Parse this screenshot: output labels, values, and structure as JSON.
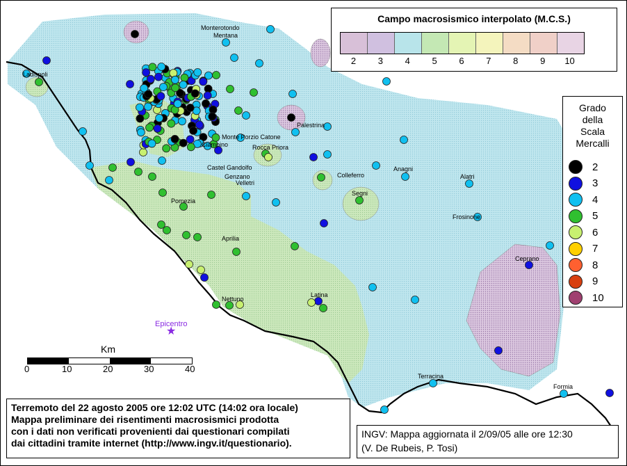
{
  "legend_top": {
    "title": "Campo macrosismico interpolato (M.C.S.)",
    "cells": [
      {
        "label": "2",
        "color": "#d8c0d8"
      },
      {
        "label": "3",
        "color": "#d0c0e0"
      },
      {
        "label": "4",
        "color": "#b8e4ea"
      },
      {
        "label": "5",
        "color": "#c4e8b4"
      },
      {
        "label": "6",
        "color": "#e4f4b4"
      },
      {
        "label": "7",
        "color": "#f4f4bc"
      },
      {
        "label": "8",
        "color": "#f4dcc4"
      },
      {
        "label": "9",
        "color": "#f0d0c8"
      },
      {
        "label": "10",
        "color": "#e8d4e4"
      }
    ]
  },
  "legend_right": {
    "header": [
      "Grado",
      "della",
      "Scala",
      "Mercalli"
    ],
    "grades": [
      {
        "label": "2",
        "color": "#000000"
      },
      {
        "label": "3",
        "color": "#1010e0"
      },
      {
        "label": "4",
        "color": "#10c0f0"
      },
      {
        "label": "5",
        "color": "#30c030"
      },
      {
        "label": "6",
        "color": "#c8f070"
      },
      {
        "label": "7",
        "color": "#ffd000"
      },
      {
        "label": "8",
        "color": "#ff6030"
      },
      {
        "label": "9",
        "color": "#d84010"
      },
      {
        "label": "10",
        "color": "#a04070"
      }
    ]
  },
  "places": [
    "Monterotondo",
    "Mentana",
    "Ladispoli",
    "Palestrina",
    "Monte Porzio Catone",
    "Rocca Priora",
    "Ciampino",
    "Castel Gandolfo",
    "Genzano",
    "Velletri",
    "Colleferro",
    "Anagni",
    "Alatri",
    "Segni",
    "Frosinone",
    "Pomezia",
    "Aprilia",
    "Ceprano",
    "Latina",
    "Nettuno",
    "Terracina",
    "Formia"
  ],
  "scale_bar": {
    "title": "Km",
    "ticks": [
      "0",
      "10",
      "20",
      "30",
      "40"
    ]
  },
  "epicenter": {
    "label": "Epicentro",
    "symbol": "★"
  },
  "caption_left": [
    "Terremoto del 22 agosto 2005 ore 12:02 UTC (14:02 ora locale)",
    "Mappa preliminare dei risentimenti macrosismici prodotta",
    "con i dati non verificati provenienti dai questionari compilati",
    "dai cittadini tramite internet (http://www.ingv.it/questionario)."
  ],
  "caption_right": [
    "INGV: Mappa aggiornata il 2/09/05 alle ore 12:30",
    "(V. De Rubeis, P. Tosi)"
  ],
  "colors": {
    "field4": "#b8e4ea",
    "field5": "#c8e8b8",
    "field2": "#d4c0dc",
    "coast": "#000000"
  }
}
